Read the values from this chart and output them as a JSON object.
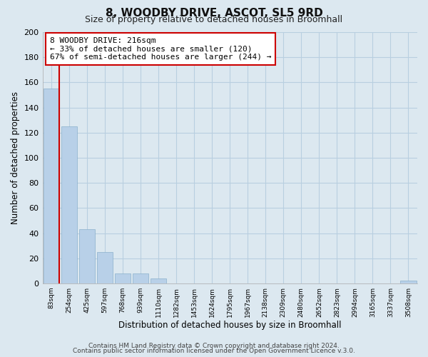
{
  "title": "8, WOODBY DRIVE, ASCOT, SL5 9RD",
  "subtitle": "Size of property relative to detached houses in Broomhall",
  "xlabel": "Distribution of detached houses by size in Broomhall",
  "ylabel": "Number of detached properties",
  "bar_labels": [
    "83sqm",
    "254sqm",
    "425sqm",
    "597sqm",
    "768sqm",
    "939sqm",
    "1110sqm",
    "1282sqm",
    "1453sqm",
    "1624sqm",
    "1795sqm",
    "1967sqm",
    "2138sqm",
    "2309sqm",
    "2480sqm",
    "2652sqm",
    "2823sqm",
    "2994sqm",
    "3165sqm",
    "3337sqm",
    "3508sqm"
  ],
  "bar_values": [
    155,
    125,
    43,
    25,
    8,
    8,
    4,
    0,
    0,
    0,
    0,
    0,
    0,
    0,
    0,
    0,
    0,
    0,
    0,
    0,
    2
  ],
  "bar_color": "#b8d0e8",
  "highlight_color": "#cc0000",
  "ylim": [
    0,
    200
  ],
  "yticks": [
    0,
    20,
    40,
    60,
    80,
    100,
    120,
    140,
    160,
    180,
    200
  ],
  "annotation_title": "8 WOODBY DRIVE: 216sqm",
  "annotation_line1": "← 33% of detached houses are smaller (120)",
  "annotation_line2": "67% of semi-detached houses are larger (244) →",
  "footer_line1": "Contains HM Land Registry data © Crown copyright and database right 2024.",
  "footer_line2": "Contains public sector information licensed under the Open Government Licence v.3.0.",
  "bg_color": "#dce8f0",
  "plot_bg_color": "#dce8f0",
  "grid_color": "#b8cfe0"
}
